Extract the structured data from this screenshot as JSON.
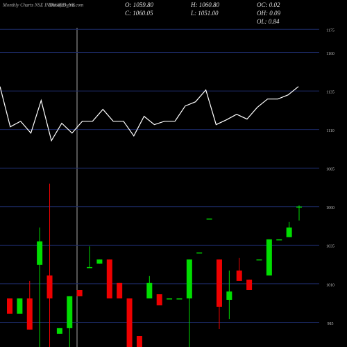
{
  "chart_data": {
    "type": "candlestick",
    "title": "Monthly Charts NSE INDIGRID_NB",
    "site": "MunafaSutra.com",
    "info": [
      "O: 1059.80",
      "H: 1060.80",
      "OC: 0.02",
      "C: 1060.05",
      "L: 1051.00",
      "OH: 0.09",
      "OL: 0.84"
    ],
    "ylim": [
      969,
      1194
    ],
    "yticks": [
      1175,
      1160,
      1135,
      1110,
      1085,
      1060,
      1035,
      1010,
      985
    ],
    "grid": true,
    "up_color": "#00dd00",
    "down_color": "#ee0000",
    "line_color": "#ffffff",
    "open": [
      1000.5,
      990.6,
      1000.5,
      1022.2,
      1015.4,
      977.6,
      981.2,
      1005.9,
      1020.8,
      1023.1,
      1025.8,
      1010.5,
      1000.5,
      976.2,
      1000.5,
      1003.2,
      1000.5,
      1000.5,
      1000.5,
      1030.3,
      1052.3,
      1025.8,
      999.6,
      1018.6,
      1012.7,
      1025.8,
      1015.4,
      1038.8,
      1040.2,
      1059.8
    ],
    "high": [
      1000.5,
      1000.5,
      1011.8,
      1046.5,
      1074.9,
      981.2,
      1001.9,
      1005.9,
      1034.3,
      1025.8,
      1025.8,
      1010.5,
      1000.5,
      976.2,
      1015.0,
      1003.2,
      1000.5,
      1000.5,
      1025.8,
      1030.3,
      1052.3,
      1025.8,
      1018.6,
      1026.7,
      1012.7,
      1025.8,
      1038.8,
      1038.8,
      1050.1,
      1060.8
    ],
    "low": [
      990.6,
      990.6,
      980.3,
      969,
      969,
      977.6,
      969,
      1001.9,
      1020.8,
      1023.1,
      1000.5,
      1000.5,
      969,
      969,
      1000.5,
      996.0,
      1000.5,
      1000.5,
      969,
      1030.3,
      1052.3,
      980.7,
      987.0,
      1011.8,
      1005.9,
      1025.8,
      1015.4,
      1038.8,
      1040.2,
      1051.0
    ],
    "close": [
      990.6,
      1000.5,
      980.3,
      1037.5,
      1000.5,
      981.2,
      1001.9,
      1001.9,
      1020.8,
      1025.8,
      1000.5,
      1000.5,
      969,
      969,
      1010.5,
      996.0,
      1000.5,
      1000.5,
      1025.8,
      1030.3,
      1052.3,
      995.1,
      1005.0,
      1011.8,
      1005.9,
      1025.8,
      1038.8,
      1038.8,
      1046.5,
      1060.05
    ],
    "line": [
      1137.9,
      1111.8,
      1115.4,
      1107.7,
      1128.9,
      1102.8,
      1114.1,
      1107.7,
      1115.4,
      1115.4,
      1123.1,
      1115.4,
      1115.4,
      1105.9,
      1118.6,
      1113.2,
      1115.4,
      1115.4,
      1125.3,
      1128.0,
      1135.7,
      1113.2,
      1116.3,
      1119.9,
      1116.8,
      1124.4,
      1129.8,
      1129.8,
      1132.5,
      1137.9
    ]
  }
}
